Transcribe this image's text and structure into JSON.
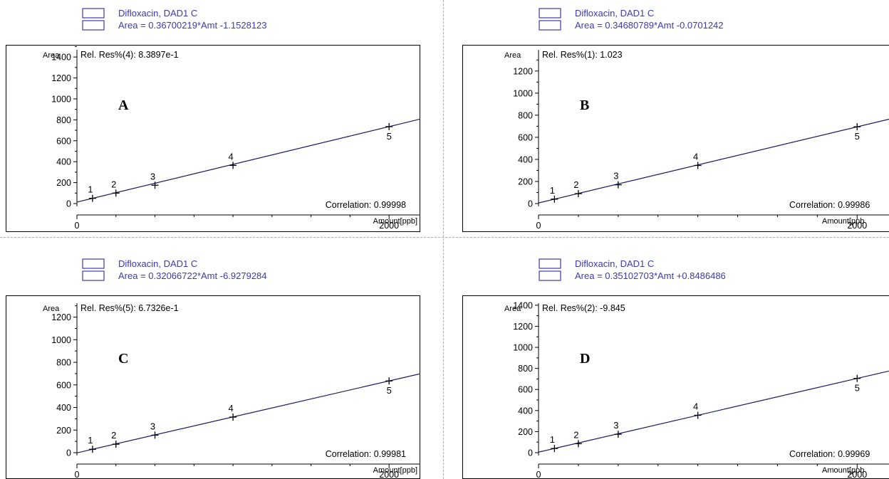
{
  "chart_data": [
    {
      "type": "scatter",
      "panel_letter": "A",
      "legend": [
        "Difloxacin, DAD1 C",
        "Area = 0.36700219*Amt -1.1528123"
      ],
      "ylabel": "Area",
      "xlabel": "Amount[ppb]",
      "rel_res": "Rel. Res%(4): 8.3897e-1",
      "correlation": "Correlation: 0.99998",
      "ylim": [
        -40,
        1530
      ],
      "xlim": [
        0,
        2200
      ],
      "yticks": [
        0,
        200,
        400,
        600,
        800,
        1000,
        1200,
        1400
      ],
      "xticks": [
        0,
        2000
      ],
      "fit": {
        "slope": 0.36700219,
        "intercept": -1.1528123
      },
      "points": [
        {
          "label": "1",
          "x": 100,
          "y": 50
        },
        {
          "label": "2",
          "x": 250,
          "y": 100
        },
        {
          "label": "3",
          "x": 500,
          "y": 175
        },
        {
          "label": "4",
          "x": 1000,
          "y": 365
        },
        {
          "label": "5",
          "x": 2000,
          "y": 735
        }
      ]
    },
    {
      "type": "scatter",
      "panel_letter": "B",
      "legend": [
        "Difloxacin, DAD1 C",
        "Area = 0.34680789*Amt -0.0701242"
      ],
      "ylabel": "Area",
      "xlabel": "Amount[ppb",
      "rel_res": "Rel. Res%(1): 1.023",
      "correlation": "Correlation: 0.99986",
      "ylim": [
        -40,
        1450
      ],
      "xlim": [
        0,
        2200
      ],
      "yticks": [
        0,
        200,
        400,
        600,
        800,
        1000,
        1200
      ],
      "xticks": [
        0,
        2000
      ],
      "fit": {
        "slope": 0.34680789,
        "intercept": -0.0701242
      },
      "points": [
        {
          "label": "1",
          "x": 100,
          "y": 40
        },
        {
          "label": "2",
          "x": 250,
          "y": 90
        },
        {
          "label": "3",
          "x": 500,
          "y": 170
        },
        {
          "label": "4",
          "x": 1000,
          "y": 345
        },
        {
          "label": "5",
          "x": 2000,
          "y": 695
        }
      ]
    },
    {
      "type": "scatter",
      "panel_letter": "C",
      "legend": [
        "Difloxacin, DAD1 C",
        "Area = 0.32066722*Amt -6.9279284"
      ],
      "ylabel": "Area",
      "xlabel": "Amount[ppb]",
      "rel_res": "Rel. Res%(5): 6.7326e-1",
      "correlation": "Correlation: 0.99981",
      "ylim": [
        -40,
        1380
      ],
      "xlim": [
        0,
        2200
      ],
      "yticks": [
        0,
        200,
        400,
        600,
        800,
        1000,
        1200
      ],
      "xticks": [
        0,
        2000
      ],
      "fit": {
        "slope": 0.32066722,
        "intercept": -6.9279284
      },
      "points": [
        {
          "label": "1",
          "x": 100,
          "y": 30
        },
        {
          "label": "2",
          "x": 250,
          "y": 75
        },
        {
          "label": "3",
          "x": 500,
          "y": 155
        },
        {
          "label": "4",
          "x": 1000,
          "y": 315
        },
        {
          "label": "5",
          "x": 2000,
          "y": 635
        }
      ]
    },
    {
      "type": "scatter",
      "panel_letter": "D",
      "legend": [
        "Difloxacin, DAD1 C",
        "Area = 0.35102703*Amt +0.8486486"
      ],
      "ylabel": "Area",
      "xlabel": "Amount[ppb",
      "rel_res": "Rel. Res%(2): -9.845",
      "correlation": "Correlation: 0.99969",
      "ylim": [
        -40,
        1480
      ],
      "xlim": [
        0,
        2200
      ],
      "yticks": [
        0,
        200,
        400,
        600,
        800,
        1000,
        1200,
        1400
      ],
      "xticks": [
        0,
        2000
      ],
      "fit": {
        "slope": 0.35102703,
        "intercept": 0.8486486
      },
      "points": [
        {
          "label": "1",
          "x": 100,
          "y": 40
        },
        {
          "label": "2",
          "x": 250,
          "y": 85
        },
        {
          "label": "3",
          "x": 500,
          "y": 175
        },
        {
          "label": "4",
          "x": 1000,
          "y": 355
        },
        {
          "label": "5",
          "x": 2000,
          "y": 705
        }
      ]
    }
  ],
  "colors": {
    "legend_text": "#3b3bb0",
    "legend_box": "#3b3bb0",
    "line": "#1a1a5e",
    "frame": "#000000",
    "separator": "#b0b0b0"
  }
}
